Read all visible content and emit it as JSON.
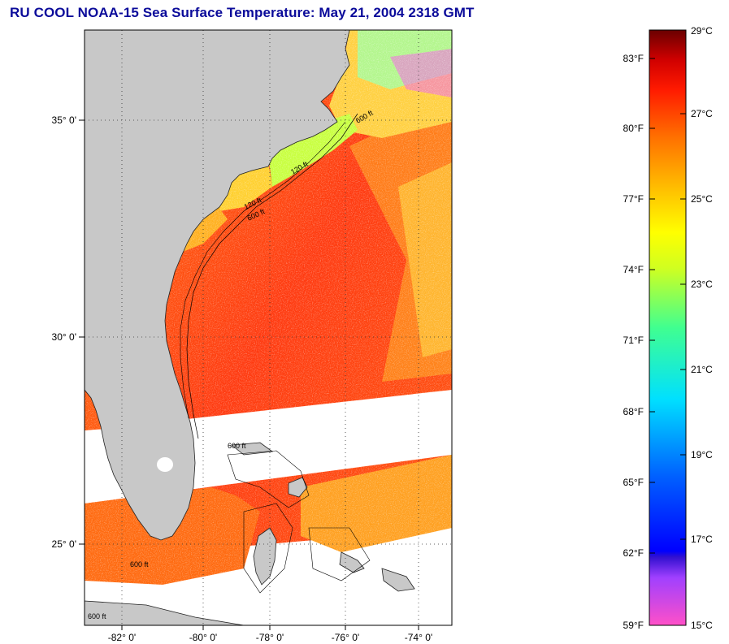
{
  "title": "RU COOL  NOAA-15  Sea Surface Temperature:  May 21, 2004 2318 GMT",
  "map": {
    "lat_labels": [
      "35° 0'",
      "30° 0'",
      "25° 0'"
    ],
    "lon_labels": [
      "-82° 0'",
      "-80° 0'",
      "-78° 0'",
      "-76° 0'",
      "-74° 0'"
    ],
    "contour_labels": [
      "600 ft",
      "120 ft",
      "600 ft",
      "120 ft",
      "600 ft",
      "600 ft",
      "600 ft"
    ]
  },
  "colorbar": {
    "fahrenheit_labels": [
      "83°F",
      "80°F",
      "77°F",
      "74°F",
      "71°F",
      "68°F",
      "65°F",
      "62°F",
      "59°F"
    ],
    "celsius_labels": [
      "29°C",
      "27°C",
      "25°C",
      "23°C",
      "21°C",
      "19°C",
      "17°C",
      "15°C"
    ],
    "colors": {
      "max": "#6a0000",
      "red": "#ff0000",
      "orange": "#ff8000",
      "yellow": "#ffff00",
      "green": "#60ff60",
      "cyan": "#00ffff",
      "blue": "#0040ff",
      "dark_blue": "#0000a0",
      "purple": "#a040ff",
      "magenta": "#ff40c0"
    }
  },
  "colors": {
    "land": "#c8c8c8",
    "title": "#0b0b9a",
    "cloud": "#ffffff"
  }
}
